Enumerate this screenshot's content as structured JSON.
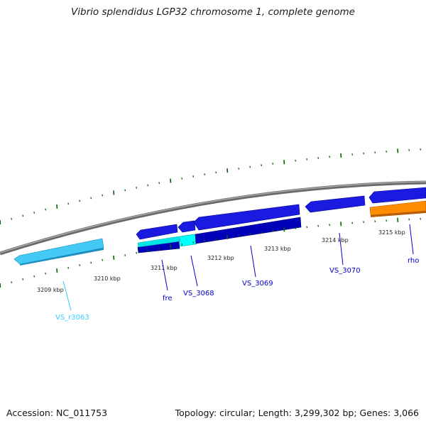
{
  "title": "Vibrio splendidus LGP32 chromosome 1, complete genome",
  "footer": {
    "accession": "Accession: NC_011753",
    "summary": "Topology: circular; Length: 3,299,302 bp; Genes: 3,066"
  },
  "ruler_labels": [
    "3209 kbp",
    "3210 kbp",
    "3211 kbp",
    "3212 kbp",
    "3213 kbp",
    "3214 kbp",
    "3215 kbp"
  ],
  "genes": [
    {
      "name": "VS_r3063",
      "color": "#33ccff",
      "type": "rRNA"
    },
    {
      "name": "fre",
      "color": "#0000cc",
      "type": "CDS"
    },
    {
      "name": "VS_3068",
      "color": "#0000cc",
      "type": "CDS"
    },
    {
      "name": "VS_3069",
      "color": "#0000cc",
      "type": "CDS"
    },
    {
      "name": "VS_3070",
      "color": "#0000cc",
      "type": "CDS"
    },
    {
      "name": "rho",
      "color": "#0000cc",
      "type": "CDS"
    }
  ],
  "colors": {
    "backbone": "#888888",
    "cds_forward": "#1a1ae0",
    "cds_reverse": "#0000bb",
    "rrna": "#44c8f5",
    "cyan_feature": "#00e6e6",
    "orange_feature": "#ff8c00",
    "tick": "#006400",
    "rrna_label": "#33ccff",
    "cds_label": "#0000cc"
  }
}
